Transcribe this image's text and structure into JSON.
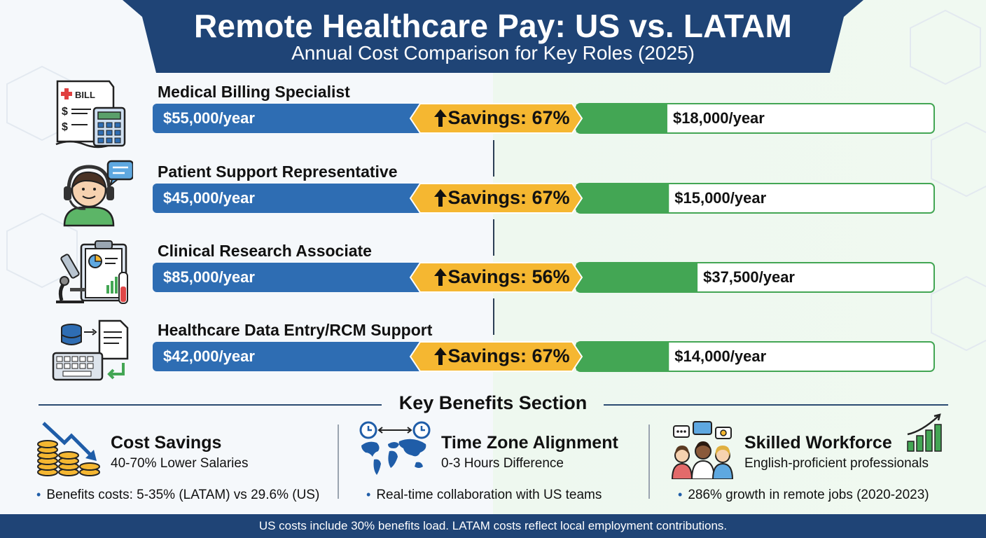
{
  "header": {
    "title": "Remote Healthcare Pay: US vs. LATAM",
    "subtitle": "Annual Cost Comparison for Key Roles (2025)"
  },
  "colors": {
    "banner": "#1f4476",
    "us_bar": "#2e6db3",
    "savings": "#f5b731",
    "latam_bar": "#43a654",
    "latam_track": "#ffffff"
  },
  "chart_data": {
    "type": "bar",
    "categories": [
      "Medical Billing Specialist",
      "Patient Support Representative",
      "Clinical Research Associate",
      "Healthcare Data Entry/RCM Support"
    ],
    "series": [
      {
        "values": [
          55000,
          45000,
          85000,
          42000
        ],
        "labels": [
          "$55,000/year",
          "$45,000/year",
          "$85,000/year",
          "$42,000/year"
        ]
      },
      {
        "values": [
          18000,
          15000,
          37500,
          14000
        ],
        "labels": [
          "$18,000/year",
          "$15,000/year",
          "$37,500/year",
          "$14,000/year"
        ]
      }
    ],
    "savings_percent": [
      67,
      67,
      56,
      67
    ],
    "savings_labels": [
      "Savings: 67%",
      "Savings: 67%",
      "Savings: 56%",
      "Savings: 67%"
    ],
    "max_value": 85000
  },
  "rows": [
    {
      "icon": "bill-calculator-icon"
    },
    {
      "icon": "headset-agent-icon"
    },
    {
      "icon": "microscope-clipboard-icon"
    },
    {
      "icon": "database-keyboard-icon"
    }
  ],
  "benefits": {
    "title": "Key Benefits Section",
    "items": [
      {
        "icon": "coins-down-trend-icon",
        "heading": "Cost Savings",
        "sub": "40-70% Lower Salaries",
        "bullet": "Benefits costs: 5-35% (LATAM) vs 29.6% (US)"
      },
      {
        "icon": "world-clock-icon",
        "heading": "Time Zone Alignment",
        "sub": "0-3 Hours Difference",
        "bullet": "Real-time collaboration with US teams"
      },
      {
        "icon": "team-growth-icon",
        "heading": "Skilled Workforce",
        "sub": "English-proficient professionals",
        "bullet": "286% growth in remote jobs (2020-2023)"
      }
    ]
  },
  "footer": {
    "note": "US costs include 30% benefits load. LATAM costs reflect local employment contributions."
  }
}
